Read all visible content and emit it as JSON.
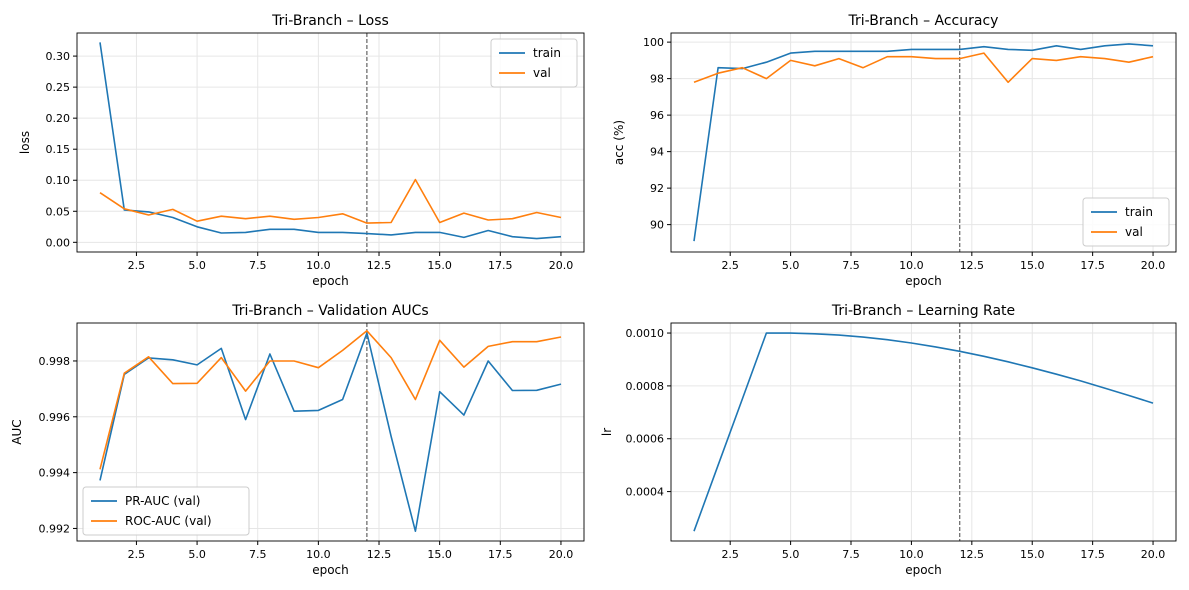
{
  "colors": {
    "blue": "#1f77b4",
    "orange": "#ff7f0e",
    "vline": "#555555",
    "grid": "#e6e6e6"
  },
  "chart_data": [
    {
      "type": "line",
      "title": "Tri-Branch – Loss",
      "xlabel": "epoch",
      "ylabel": "loss",
      "xlim": [
        0.05,
        20.95
      ],
      "ylim": [
        -0.0156,
        0.3372
      ],
      "xticks": [
        2.5,
        5.0,
        7.5,
        10.0,
        12.5,
        15.0,
        17.5,
        20.0
      ],
      "xtick_labels": [
        "2.5",
        "5.0",
        "7.5",
        "10.0",
        "12.5",
        "15.0",
        "17.5",
        "20.0"
      ],
      "yticks": [
        0.0,
        0.05,
        0.1,
        0.15,
        0.2,
        0.25,
        0.3
      ],
      "ytick_labels": [
        "0.00",
        "0.05",
        "0.10",
        "0.15",
        "0.20",
        "0.25",
        "0.30"
      ],
      "grid": true,
      "legend": "upper-right",
      "vline": 12,
      "x": [
        1,
        2,
        3,
        4,
        5,
        6,
        7,
        8,
        9,
        10,
        11,
        12,
        13,
        14,
        15,
        16,
        17,
        18,
        19,
        20
      ],
      "series": [
        {
          "name": "train",
          "color": "#1f77b4",
          "values": [
            0.322,
            0.052,
            0.049,
            0.04,
            0.025,
            0.015,
            0.016,
            0.021,
            0.021,
            0.016,
            0.016,
            0.014,
            0.012,
            0.016,
            0.016,
            0.008,
            0.019,
            0.009,
            0.006,
            0.009
          ]
        },
        {
          "name": "val",
          "color": "#ff7f0e",
          "values": [
            0.08,
            0.054,
            0.044,
            0.053,
            0.034,
            0.042,
            0.038,
            0.042,
            0.037,
            0.04,
            0.046,
            0.031,
            0.032,
            0.101,
            0.032,
            0.047,
            0.036,
            0.038,
            0.048,
            0.04
          ]
        }
      ]
    },
    {
      "type": "line",
      "title": "Tri-Branch – Accuracy",
      "xlabel": "epoch",
      "ylabel": "acc (%)",
      "xlim": [
        0.05,
        20.95
      ],
      "ylim": [
        88.5,
        100.5
      ],
      "xticks": [
        2.5,
        5.0,
        7.5,
        10.0,
        12.5,
        15.0,
        17.5,
        20.0
      ],
      "xtick_labels": [
        "2.5",
        "5.0",
        "7.5",
        "10.0",
        "12.5",
        "15.0",
        "17.5",
        "20.0"
      ],
      "yticks": [
        90,
        92,
        94,
        96,
        98,
        100
      ],
      "ytick_labels": [
        "90",
        "92",
        "94",
        "96",
        "98",
        "100"
      ],
      "grid": true,
      "legend": "lower-right",
      "vline": 12,
      "x": [
        1,
        2,
        3,
        4,
        5,
        6,
        7,
        8,
        9,
        10,
        11,
        12,
        13,
        14,
        15,
        16,
        17,
        18,
        19,
        20
      ],
      "series": [
        {
          "name": "train",
          "color": "#1f77b4",
          "values": [
            89.1,
            98.6,
            98.55,
            98.9,
            99.4,
            99.5,
            99.5,
            99.5,
            99.5,
            99.6,
            99.6,
            99.6,
            99.75,
            99.6,
            99.55,
            99.8,
            99.6,
            99.8,
            99.9,
            99.8
          ]
        },
        {
          "name": "val",
          "color": "#ff7f0e",
          "values": [
            97.8,
            98.3,
            98.6,
            98.0,
            99.0,
            98.7,
            99.1,
            98.6,
            99.2,
            99.2,
            99.1,
            99.1,
            99.4,
            97.8,
            99.1,
            99.0,
            99.2,
            99.1,
            98.9,
            99.2
          ]
        }
      ]
    },
    {
      "type": "line",
      "title": "Tri-Branch – Validation AUCs",
      "xlabel": "epoch",
      "ylabel": "AUC",
      "xlim": [
        0.05,
        20.95
      ],
      "ylim": [
        0.99155,
        0.99936
      ],
      "xticks": [
        2.5,
        5.0,
        7.5,
        10.0,
        12.5,
        15.0,
        17.5,
        20.0
      ],
      "xtick_labels": [
        "2.5",
        "5.0",
        "7.5",
        "10.0",
        "12.5",
        "15.0",
        "17.5",
        "20.0"
      ],
      "yticks": [
        0.992,
        0.994,
        0.996,
        0.998
      ],
      "ytick_labels": [
        "0.992",
        "0.994",
        "0.996",
        "0.998"
      ],
      "grid": true,
      "legend": "lower-left",
      "vline": 12,
      "x": [
        1,
        2,
        3,
        4,
        5,
        6,
        7,
        8,
        9,
        10,
        11,
        12,
        13,
        14,
        15,
        16,
        17,
        18,
        19,
        20
      ],
      "series": [
        {
          "name": "PR-AUC (val)",
          "color": "#1f77b4",
          "values": [
            0.99372,
            0.99752,
            0.99811,
            0.99804,
            0.99786,
            0.99845,
            0.9959,
            0.99825,
            0.9962,
            0.99623,
            0.99662,
            0.999,
            0.9953,
            0.9919,
            0.9969,
            0.99606,
            0.998,
            0.99694,
            0.99695,
            0.99717
          ]
        },
        {
          "name": "ROC-AUC (val)",
          "color": "#ff7f0e",
          "values": [
            0.99412,
            0.99756,
            0.99815,
            0.99719,
            0.9972,
            0.99812,
            0.99692,
            0.998,
            0.998,
            0.99776,
            0.99838,
            0.99908,
            0.99812,
            0.99662,
            0.99874,
            0.99778,
            0.99852,
            0.99869,
            0.99869,
            0.99886
          ]
        }
      ]
    },
    {
      "type": "line",
      "title": "Tri-Branch – Learning Rate",
      "xlabel": "epoch",
      "ylabel": "lr",
      "xlim": [
        0.05,
        20.95
      ],
      "ylim": [
        0.000213,
        0.001038
      ],
      "xticks": [
        2.5,
        5.0,
        7.5,
        10.0,
        12.5,
        15.0,
        17.5,
        20.0
      ],
      "xtick_labels": [
        "2.5",
        "5.0",
        "7.5",
        "10.0",
        "12.5",
        "15.0",
        "17.5",
        "20.0"
      ],
      "yticks": [
        0.0004,
        0.0006,
        0.0008,
        0.001
      ],
      "ytick_labels": [
        "0.0004",
        "0.0006",
        "0.0008",
        "0.0010"
      ],
      "grid": true,
      "legend": "none",
      "vline": 12,
      "x": [
        1,
        2,
        3,
        4,
        5,
        6,
        7,
        8,
        9,
        10,
        11,
        12,
        13,
        14,
        15,
        16,
        17,
        18,
        19,
        20
      ],
      "series": [
        {
          "name": "",
          "color": "#1f77b4",
          "values": [
            0.00025,
            0.0005,
            0.00075,
            0.001,
            0.0009998,
            0.0009973,
            0.0009922,
            0.0009847,
            0.0009747,
            0.0009623,
            0.0009476,
            0.0009308,
            0.0009119,
            0.0008911,
            0.0008685,
            0.0008443,
            0.0008187,
            0.0007918,
            0.0007638,
            0.0007349
          ]
        }
      ]
    }
  ]
}
